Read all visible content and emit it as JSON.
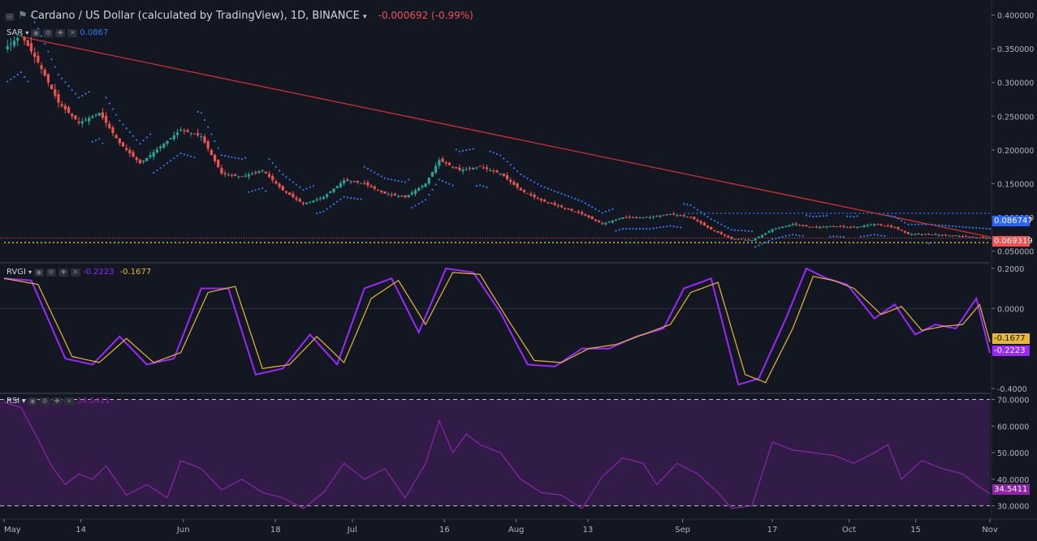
{
  "header": {
    "symbol": "Cardano / US Dollar (calculated by TradingView), 1D, BINANCE",
    "change": "-0.000692 (-0.99%)"
  },
  "indicators": {
    "sar": {
      "label": "SAR",
      "value": "0.0867"
    },
    "rvgi": {
      "label": "RVGI",
      "value1": "-0.2223",
      "value2": "-0.1677"
    },
    "rsi": {
      "label": "RSI",
      "value": "34.5411"
    }
  },
  "price_tags": {
    "sar": "0.086747",
    "last": "0.069319"
  },
  "rvgi_tags": {
    "signal": "-0.1677",
    "rvgi": "-0.2223"
  },
  "rsi_tag": "34.5411",
  "colors": {
    "background": "#131722",
    "up": "#26a69a",
    "down": "#ef5350",
    "sar": "#3179f5",
    "trend": "#d32f2f",
    "rvgi": "#9c27ff",
    "signal": "#e8b73a",
    "rsi": "#8e24aa",
    "support": "#ffd54f"
  },
  "chart_data": [
    {
      "type": "candlestick",
      "title": "Cardano / US Dollar (calculated by TradingView), 1D, BINANCE",
      "x_ticks": [
        "May",
        "14",
        "Jun",
        "18",
        "Jul",
        "16",
        "Aug",
        "13",
        "Sep",
        "17",
        "Oct",
        "15",
        "Nov"
      ],
      "y_ticks": [
        "0.400000",
        "0.350000",
        "0.300000",
        "0.250000",
        "0.200000",
        "0.150000",
        "0.100000",
        "0.050000"
      ],
      "ylim": [
        0.035,
        0.42
      ],
      "close_anchors": [
        [
          0,
          0.35
        ],
        [
          5,
          0.37
        ],
        [
          10,
          0.33
        ],
        [
          16,
          0.27
        ],
        [
          22,
          0.24
        ],
        [
          28,
          0.255
        ],
        [
          34,
          0.21
        ],
        [
          40,
          0.18
        ],
        [
          46,
          0.205
        ],
        [
          52,
          0.23
        ],
        [
          58,
          0.22
        ],
        [
          64,
          0.165
        ],
        [
          70,
          0.16
        ],
        [
          76,
          0.17
        ],
        [
          82,
          0.14
        ],
        [
          88,
          0.12
        ],
        [
          94,
          0.13
        ],
        [
          100,
          0.155
        ],
        [
          106,
          0.15
        ],
        [
          112,
          0.135
        ],
        [
          118,
          0.13
        ],
        [
          124,
          0.15
        ],
        [
          128,
          0.185
        ],
        [
          134,
          0.17
        ],
        [
          140,
          0.175
        ],
        [
          146,
          0.165
        ],
        [
          152,
          0.14
        ],
        [
          158,
          0.125
        ],
        [
          164,
          0.115
        ],
        [
          170,
          0.105
        ],
        [
          176,
          0.09
        ],
        [
          182,
          0.1
        ],
        [
          190,
          0.1
        ],
        [
          196,
          0.105
        ],
        [
          202,
          0.1
        ],
        [
          208,
          0.082
        ],
        [
          214,
          0.068
        ],
        [
          220,
          0.066
        ],
        [
          226,
          0.082
        ],
        [
          232,
          0.09
        ],
        [
          238,
          0.085
        ],
        [
          244,
          0.087
        ],
        [
          250,
          0.085
        ],
        [
          256,
          0.09
        ],
        [
          262,
          0.085
        ],
        [
          266,
          0.075
        ],
        [
          272,
          0.075
        ],
        [
          278,
          0.073
        ],
        [
          284,
          0.071
        ],
        [
          290,
          0.0693
        ]
      ],
      "sar_value": 0.0867,
      "last_price": 0.069319,
      "horizontal_lines": [
        0.106,
        0.0625
      ],
      "trend_line": [
        [
          5,
          0.368
        ],
        [
          290,
          0.071
        ]
      ]
    },
    {
      "type": "line",
      "title": "RVGI",
      "y_ticks": [
        "0.2000",
        "0.0000",
        "-0.4000"
      ],
      "ylim": [
        -0.42,
        0.22
      ],
      "series": [
        {
          "name": "RVGI",
          "anchors": [
            [
              0,
              0.15
            ],
            [
              8,
              0.14
            ],
            [
              18,
              -0.25
            ],
            [
              26,
              -0.28
            ],
            [
              34,
              -0.14
            ],
            [
              42,
              -0.28
            ],
            [
              50,
              -0.25
            ],
            [
              58,
              0.1
            ],
            [
              66,
              0.1
            ],
            [
              74,
              -0.33
            ],
            [
              82,
              -0.3
            ],
            [
              90,
              -0.13
            ],
            [
              98,
              -0.28
            ],
            [
              106,
              0.1
            ],
            [
              114,
              0.15
            ],
            [
              122,
              -0.12
            ],
            [
              130,
              0.2
            ],
            [
              138,
              0.18
            ],
            [
              146,
              -0.02
            ],
            [
              154,
              -0.28
            ],
            [
              162,
              -0.29
            ],
            [
              170,
              -0.2
            ],
            [
              178,
              -0.2
            ],
            [
              186,
              -0.14
            ],
            [
              194,
              -0.1
            ],
            [
              200,
              0.1
            ],
            [
              208,
              0.15
            ],
            [
              216,
              -0.38
            ],
            [
              222,
              -0.35
            ],
            [
              230,
              -0.05
            ],
            [
              236,
              0.2
            ],
            [
              242,
              0.15
            ],
            [
              248,
              0.12
            ],
            [
              256,
              -0.05
            ],
            [
              262,
              0.02
            ],
            [
              268,
              -0.13
            ],
            [
              274,
              -0.08
            ],
            [
              280,
              -0.1
            ],
            [
              286,
              0.05
            ],
            [
              290,
              -0.2223
            ]
          ],
          "value": "-0.2223"
        },
        {
          "name": "Signal",
          "anchors": [
            [
              0,
              0.15
            ],
            [
              10,
              0.12
            ],
            [
              20,
              -0.24
            ],
            [
              28,
              -0.27
            ],
            [
              36,
              -0.15
            ],
            [
              44,
              -0.27
            ],
            [
              52,
              -0.22
            ],
            [
              60,
              0.08
            ],
            [
              68,
              0.11
            ],
            [
              76,
              -0.3
            ],
            [
              84,
              -0.28
            ],
            [
              92,
              -0.14
            ],
            [
              100,
              -0.27
            ],
            [
              108,
              0.05
            ],
            [
              116,
              0.14
            ],
            [
              124,
              -0.08
            ],
            [
              132,
              0.18
            ],
            [
              140,
              0.17
            ],
            [
              148,
              -0.05
            ],
            [
              156,
              -0.26
            ],
            [
              164,
              -0.27
            ],
            [
              172,
              -0.2
            ],
            [
              180,
              -0.18
            ],
            [
              188,
              -0.13
            ],
            [
              196,
              -0.08
            ],
            [
              202,
              0.08
            ],
            [
              210,
              0.13
            ],
            [
              218,
              -0.33
            ],
            [
              224,
              -0.37
            ],
            [
              232,
              -0.1
            ],
            [
              238,
              0.16
            ],
            [
              244,
              0.14
            ],
            [
              250,
              0.1
            ],
            [
              258,
              -0.03
            ],
            [
              264,
              0.01
            ],
            [
              270,
              -0.11
            ],
            [
              276,
              -0.09
            ],
            [
              282,
              -0.08
            ],
            [
              287,
              0.02
            ],
            [
              290,
              -0.1677
            ]
          ],
          "value": "-0.1677"
        }
      ]
    },
    {
      "type": "line",
      "title": "RSI",
      "y_ticks": [
        "70.0000",
        "60.0000",
        "50.0000",
        "40.0000",
        "30.0000"
      ],
      "ylim": [
        25,
        72
      ],
      "bands": [
        70,
        30
      ],
      "series": [
        {
          "name": "RSI",
          "anchors": [
            [
              0,
              69
            ],
            [
              5,
              67
            ],
            [
              10,
              55
            ],
            [
              14,
              45
            ],
            [
              18,
              38
            ],
            [
              22,
              42
            ],
            [
              26,
              40
            ],
            [
              30,
              45
            ],
            [
              36,
              34
            ],
            [
              42,
              38
            ],
            [
              48,
              33
            ],
            [
              52,
              47
            ],
            [
              58,
              44
            ],
            [
              64,
              36
            ],
            [
              70,
              40
            ],
            [
              76,
              35
            ],
            [
              82,
              33
            ],
            [
              88,
              29
            ],
            [
              94,
              35
            ],
            [
              100,
              46
            ],
            [
              106,
              40
            ],
            [
              112,
              44
            ],
            [
              118,
              33
            ],
            [
              124,
              46
            ],
            [
              128,
              62
            ],
            [
              132,
              50
            ],
            [
              136,
              57
            ],
            [
              140,
              53
            ],
            [
              146,
              50
            ],
            [
              152,
              40
            ],
            [
              158,
              35
            ],
            [
              164,
              34
            ],
            [
              170,
              29
            ],
            [
              176,
              41
            ],
            [
              182,
              48
            ],
            [
              188,
              46
            ],
            [
              192,
              38
            ],
            [
              198,
              46
            ],
            [
              204,
              42
            ],
            [
              210,
              35
            ],
            [
              214,
              29
            ],
            [
              220,
              30
            ],
            [
              226,
              54
            ],
            [
              232,
              51
            ],
            [
              238,
              50
            ],
            [
              244,
              49
            ],
            [
              250,
              46
            ],
            [
              256,
              50
            ],
            [
              260,
              53
            ],
            [
              264,
              40
            ],
            [
              270,
              47
            ],
            [
              276,
              44
            ],
            [
              282,
              42
            ],
            [
              286,
              38
            ],
            [
              290,
              34.5411
            ]
          ],
          "value": "34.5411"
        }
      ]
    }
  ]
}
